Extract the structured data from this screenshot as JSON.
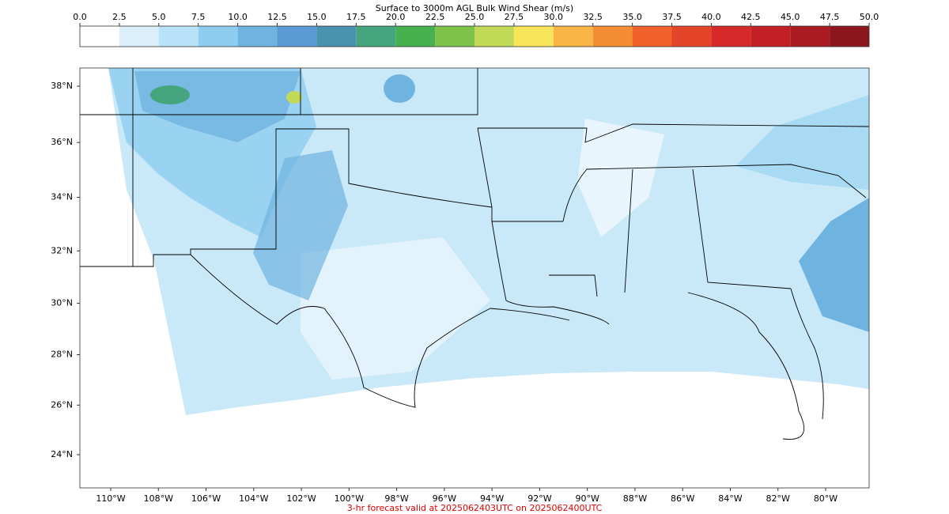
{
  "colorbar": {
    "title": "Surface to 3000m AGL Bulk Wind Shear (m/s)",
    "ticks": [
      {
        "value": 0,
        "label": "0.0"
      },
      2.5,
      {
        "value": 5,
        "label": "5.0"
      },
      7.5,
      {
        "value": 10,
        "label": "10.0"
      },
      12.5,
      {
        "value": 15,
        "label": "15.0"
      },
      17.5,
      {
        "value": 20,
        "label": "20.0"
      },
      22.5,
      {
        "value": 25,
        "label": "25.0"
      },
      27.5,
      {
        "value": 30,
        "label": "30.0"
      },
      32.5,
      {
        "value": 35,
        "label": "35.0"
      },
      37.5,
      {
        "value": 40,
        "label": "40.0"
      },
      42.5,
      {
        "value": 45,
        "label": "45.0"
      },
      47.5,
      {
        "value": 50,
        "label": "50.0"
      }
    ],
    "colors": [
      "#ffffff",
      "#dbeffb",
      "#b8e2f7",
      "#8fcdf0",
      "#6fb4e0",
      "#5a9bd5",
      "#4a93b0",
      "#45a57e",
      "#47b04f",
      "#7fc24a",
      "#c2d957",
      "#f9e55a",
      "#f9b545",
      "#f58d35",
      "#f0612b",
      "#e44428",
      "#d7282a",
      "#c21f27",
      "#aa1b22",
      "#8c161b"
    ]
  },
  "map": {
    "lat_labels": [
      {
        "value": 38,
        "label": "38°N"
      },
      {
        "value": 36,
        "label": "36°N"
      },
      {
        "value": 34,
        "label": "34°N"
      },
      {
        "value": 32,
        "label": "32°N"
      },
      {
        "value": 30,
        "label": "30°N"
      },
      {
        "value": 28,
        "label": "28°N"
      },
      {
        "value": 26,
        "label": "26°N"
      },
      {
        "value": 24,
        "label": "24°N"
      }
    ],
    "lon_labels": [
      {
        "value": -110,
        "label": "110°W"
      },
      {
        "value": -108,
        "label": "108°W"
      },
      {
        "value": -106,
        "label": "106°W"
      },
      {
        "value": -104,
        "label": "104°W"
      },
      {
        "value": -102,
        "label": "102°W"
      },
      {
        "value": -100,
        "label": "100°W"
      },
      {
        "value": -98,
        "label": "98°W"
      },
      {
        "value": -96,
        "label": "96°W"
      },
      {
        "value": -94,
        "label": "94°W"
      },
      {
        "value": -92,
        "label": "92°W"
      },
      {
        "value": -90,
        "label": "90°W"
      },
      {
        "value": -88,
        "label": "88°W"
      },
      {
        "value": -86,
        "label": "86°W"
      },
      {
        "value": -84,
        "label": "84°W"
      },
      {
        "value": -82,
        "label": "82°W"
      },
      {
        "value": -80,
        "label": "80°W"
      }
    ]
  },
  "footer": "3-hr forecast valid at 2025062403UTC on 2025062400UTC"
}
